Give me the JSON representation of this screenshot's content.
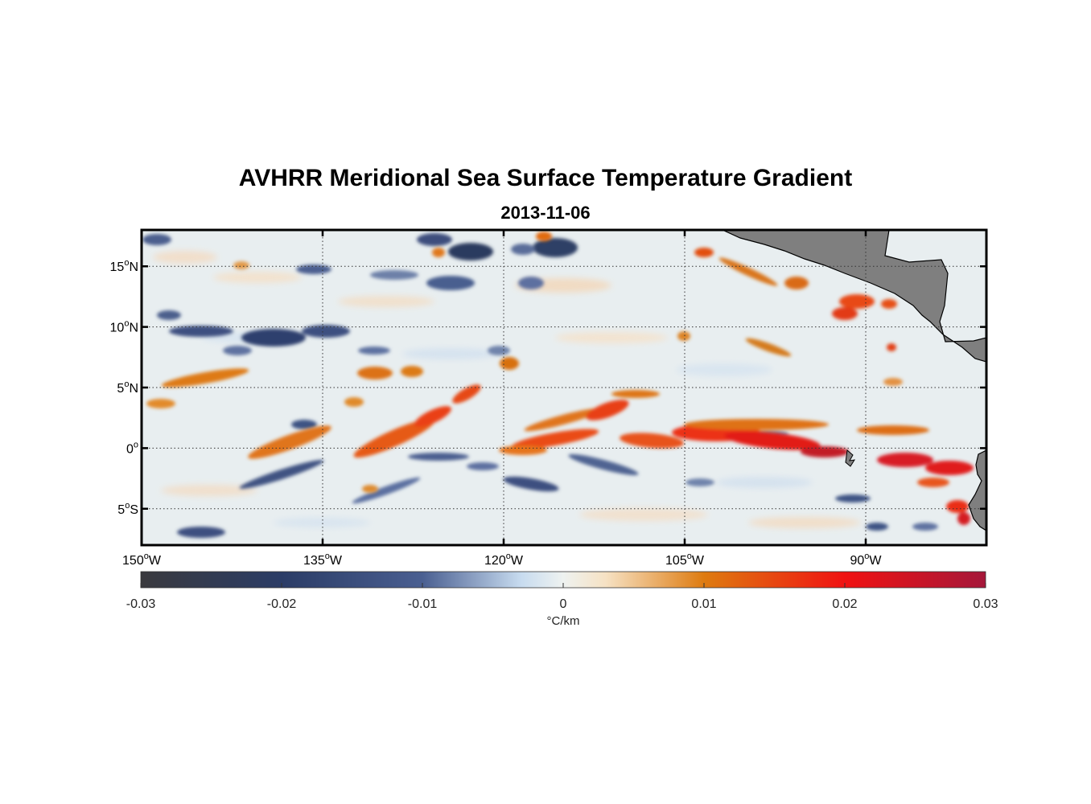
{
  "figure": {
    "title": "AVHRR Meridional Sea Surface Temperature Gradient",
    "subtitle": "2013-11-06"
  },
  "map": {
    "lon_range": [
      -150,
      -80
    ],
    "lat_range": [
      -8,
      18
    ],
    "lat_ticks": [
      {
        "value": 15,
        "num": "15",
        "hemi": "N"
      },
      {
        "value": 10,
        "num": "10",
        "hemi": "N"
      },
      {
        "value": 5,
        "num": "5",
        "hemi": "N"
      },
      {
        "value": 0,
        "num": "0",
        "hemi": ""
      },
      {
        "value": -5,
        "num": "5",
        "hemi": "S"
      }
    ],
    "lon_ticks": [
      {
        "value": -150,
        "num": "150",
        "hemi": "W"
      },
      {
        "value": -135,
        "num": "135",
        "hemi": "W"
      },
      {
        "value": -120,
        "num": "120",
        "hemi": "W"
      },
      {
        "value": -105,
        "num": "105",
        "hemi": "W"
      },
      {
        "value": -90,
        "num": "90",
        "hemi": "W"
      }
    ],
    "grid": "dotted",
    "land_color": "#7f7f7f",
    "ocean_background": "#e8eef0"
  },
  "colorbar": {
    "min": -0.03,
    "max": 0.03,
    "ticks": [
      "-0.03",
      "-0.02",
      "-0.01",
      "0",
      "0.01",
      "0.02",
      "0.03"
    ],
    "label": "°C/km",
    "stops": [
      {
        "value": -0.03,
        "color": "#3a3a3e"
      },
      {
        "value": -0.02,
        "color": "#2b3c66"
      },
      {
        "value": -0.01,
        "color": "#4a5f91"
      },
      {
        "value": -0.003,
        "color": "#c7dbef"
      },
      {
        "value": 0.0,
        "color": "#eef2f0"
      },
      {
        "value": 0.003,
        "color": "#f6e2c4"
      },
      {
        "value": 0.01,
        "color": "#de7b10"
      },
      {
        "value": 0.02,
        "color": "#f01212"
      },
      {
        "value": 0.03,
        "color": "#a5173a"
      }
    ]
  }
}
